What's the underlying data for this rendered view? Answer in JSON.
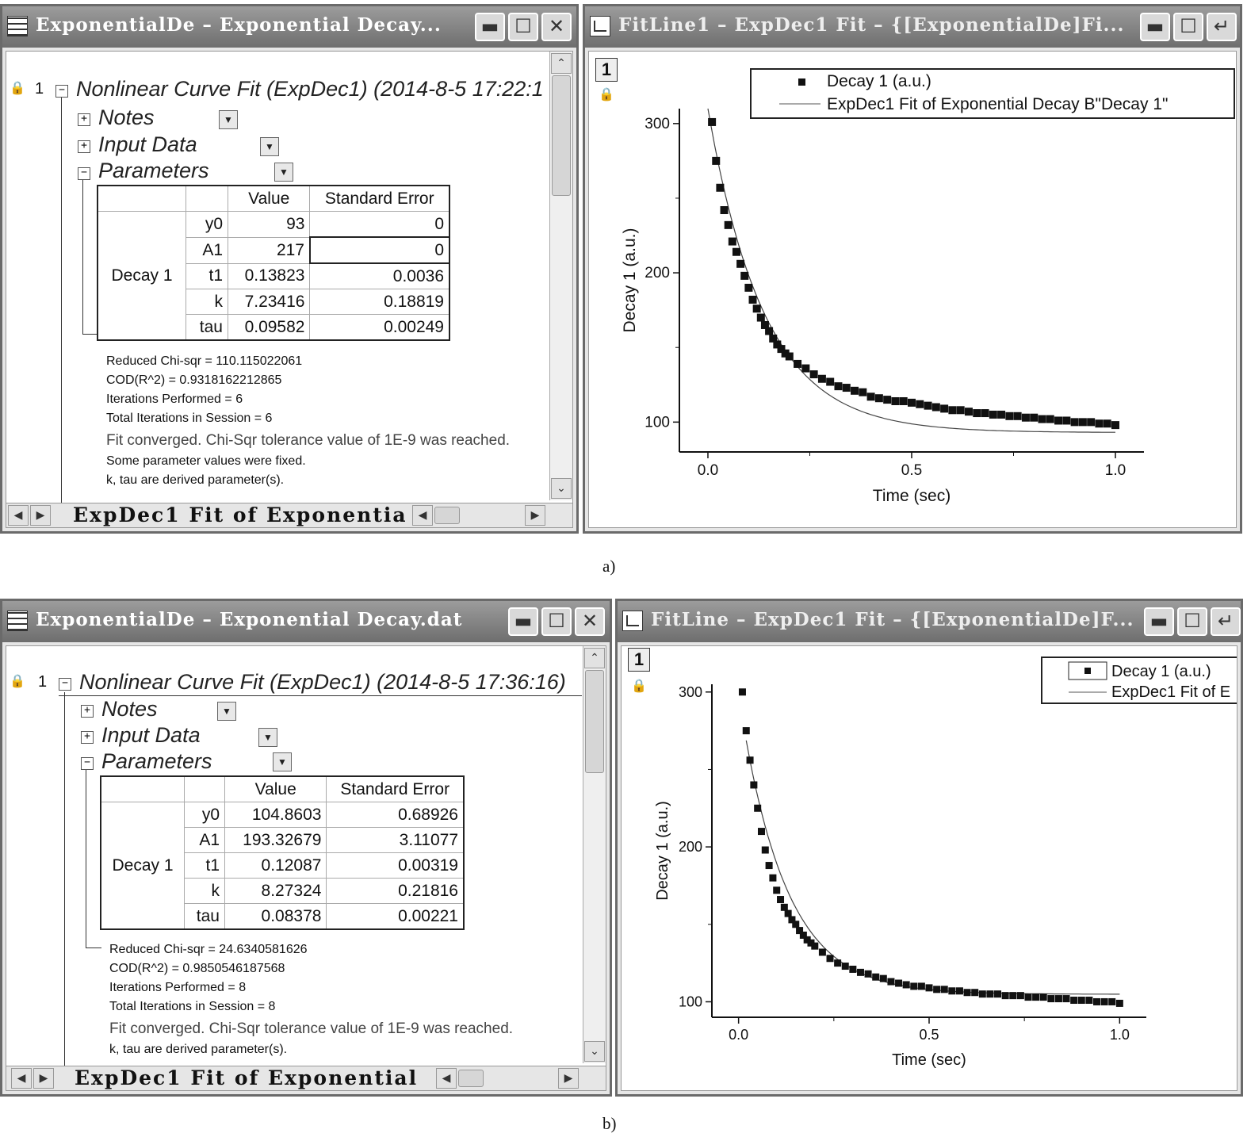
{
  "panels": [
    {
      "caption": "a)",
      "report": {
        "title": "ExponentialDe – Exponential Decay...",
        "row_number": "1",
        "heading": "Nonlinear Curve Fit (ExpDec1) (2014-8-5 17:22:1",
        "sections": [
          "Notes",
          "Input Data",
          "Parameters"
        ],
        "table": {
          "headers": [
            "Value",
            "Standard Error"
          ],
          "group": "Decay 1",
          "rows": [
            {
              "name": "y0",
              "value": "93",
              "error": "0"
            },
            {
              "name": "A1",
              "value": "217",
              "error": "0"
            },
            {
              "name": "t1",
              "value": "0.13823",
              "error": "0.0036"
            },
            {
              "name": "k",
              "value": "7.23416",
              "error": "0.18819"
            },
            {
              "name": "tau",
              "value": "0.09582",
              "error": "0.00249"
            }
          ]
        },
        "stats": [
          "Reduced Chi-sqr = 110.115022061",
          "COD(R^2) = 0.9318162212865",
          "Iterations Performed = 6",
          "Total Iterations in Session = 6",
          "Fit converged. Chi-Sqr tolerance value of 1E-9 was reached.",
          "Some parameter values were fixed.",
          "k, tau are derived parameter(s)."
        ],
        "sheet_tab": "ExpDec1 Fit of Exponentia"
      },
      "graph": {
        "title": "FitLine1 – ExpDec1 Fit – {[ExponentialDe]Fi...",
        "layer": "1",
        "legend": [
          "Decay 1 (a.u.)",
          "ExpDec1 Fit of Exponential Decay B\"Decay 1\""
        ]
      }
    },
    {
      "caption": "b)",
      "report": {
        "title": "ExponentialDe – Exponential Decay.dat",
        "row_number": "1",
        "heading": "Nonlinear Curve Fit (ExpDec1) (2014-8-5 17:36:16)",
        "sections": [
          "Notes",
          "Input Data",
          "Parameters"
        ],
        "table": {
          "headers": [
            "Value",
            "Standard Error"
          ],
          "group": "Decay 1",
          "rows": [
            {
              "name": "y0",
              "value": "104.8603",
              "error": "0.68926"
            },
            {
              "name": "A1",
              "value": "193.32679",
              "error": "3.11077"
            },
            {
              "name": "t1",
              "value": "0.12087",
              "error": "0.00319"
            },
            {
              "name": "k",
              "value": "8.27324",
              "error": "0.21816"
            },
            {
              "name": "tau",
              "value": "0.08378",
              "error": "0.00221"
            }
          ]
        },
        "stats": [
          "Reduced Chi-sqr = 24.6340581626",
          "COD(R^2) = 0.9850546187568",
          "Iterations Performed = 8",
          "Total Iterations in Session = 8",
          "Fit converged. Chi-Sqr tolerance value of 1E-9 was reached.",
          "k, tau are derived parameter(s)."
        ],
        "sheet_tab": "ExpDec1 Fit of Exponential"
      },
      "graph": {
        "title": "FitLine – ExpDec1 Fit – {[ExponentialDe]F...",
        "layer": "1",
        "legend": [
          "Decay 1 (a.u.)",
          "ExpDec1 Fit of E"
        ]
      }
    }
  ],
  "chart_data": [
    {
      "type": "scatter",
      "xlabel": "Time (sec)",
      "ylabel": "Decay 1 (a.u.)",
      "xticks": [
        "0.0",
        "0.5",
        "1.0"
      ],
      "yticks": [
        "100",
        "200",
        "300"
      ],
      "xlim": [
        -0.07,
        1.07
      ],
      "ylim": [
        80,
        310
      ],
      "series": [
        {
          "name": "Decay 1 (a.u.)",
          "style": "markers",
          "x": [
            0.01,
            0.02,
            0.03,
            0.04,
            0.05,
            0.06,
            0.07,
            0.08,
            0.09,
            0.1,
            0.11,
            0.12,
            0.13,
            0.14,
            0.15,
            0.16,
            0.17,
            0.18,
            0.19,
            0.2,
            0.22,
            0.24,
            0.26,
            0.28,
            0.3,
            0.32,
            0.34,
            0.36,
            0.38,
            0.4,
            0.42,
            0.44,
            0.46,
            0.48,
            0.5,
            0.52,
            0.54,
            0.56,
            0.58,
            0.6,
            0.62,
            0.64,
            0.66,
            0.68,
            0.7,
            0.72,
            0.74,
            0.76,
            0.78,
            0.8,
            0.82,
            0.84,
            0.86,
            0.88,
            0.9,
            0.92,
            0.94,
            0.96,
            0.98,
            1.0
          ],
          "y": [
            301,
            275,
            257,
            242,
            232,
            221,
            214,
            206,
            198,
            190,
            182,
            176,
            170,
            165,
            161,
            156,
            152,
            149,
            146,
            144,
            139,
            136,
            132,
            129,
            127,
            124,
            123,
            121,
            120,
            117,
            116,
            115,
            114,
            114,
            113,
            112,
            111,
            110,
            109,
            108,
            108,
            107,
            106,
            106,
            105,
            105,
            104,
            104,
            103,
            103,
            102,
            102,
            101,
            101,
            100,
            100,
            100,
            99,
            99,
            98
          ]
        },
        {
          "name": "ExpDec1 Fit of Exponential Decay B\"Decay 1\"",
          "style": "line",
          "fit": {
            "y0": 93,
            "A1": 217,
            "t1": 0.13823
          },
          "xrange": [
            0.0,
            1.0
          ]
        }
      ]
    },
    {
      "type": "scatter",
      "xlabel": "Time (sec)",
      "ylabel": "Decay 1 (a.u.)",
      "xticks": [
        "0.0",
        "0.5",
        "1.0"
      ],
      "yticks": [
        "100",
        "200",
        "300"
      ],
      "xlim": [
        -0.07,
        1.07
      ],
      "ylim": [
        90,
        305
      ],
      "series": [
        {
          "name": "Decay 1 (a.u.)",
          "style": "markers",
          "x": [
            0.01,
            0.02,
            0.03,
            0.04,
            0.05,
            0.06,
            0.07,
            0.08,
            0.09,
            0.1,
            0.11,
            0.12,
            0.13,
            0.14,
            0.15,
            0.16,
            0.17,
            0.18,
            0.19,
            0.2,
            0.22,
            0.24,
            0.26,
            0.28,
            0.3,
            0.32,
            0.34,
            0.36,
            0.38,
            0.4,
            0.42,
            0.44,
            0.46,
            0.48,
            0.5,
            0.52,
            0.54,
            0.56,
            0.58,
            0.6,
            0.62,
            0.64,
            0.66,
            0.68,
            0.7,
            0.72,
            0.74,
            0.76,
            0.78,
            0.8,
            0.82,
            0.84,
            0.86,
            0.88,
            0.9,
            0.92,
            0.94,
            0.96,
            0.98,
            1.0
          ],
          "y": [
            300,
            275,
            256,
            240,
            225,
            210,
            198,
            188,
            180,
            172,
            166,
            161,
            157,
            153,
            150,
            146,
            143,
            140,
            138,
            136,
            132,
            128,
            125,
            123,
            121,
            119,
            118,
            116,
            115,
            113,
            112,
            111,
            110,
            110,
            109,
            108,
            108,
            107,
            107,
            106,
            106,
            105,
            105,
            105,
            104,
            104,
            104,
            103,
            103,
            103,
            102,
            102,
            102,
            101,
            101,
            101,
            100,
            100,
            100,
            99
          ]
        },
        {
          "name": "ExpDec1 Fit of E",
          "style": "line",
          "fit": {
            "y0": 104.8603,
            "A1": 193.32679,
            "t1": 0.12087
          },
          "xrange": [
            0.02,
            1.0
          ]
        }
      ]
    }
  ]
}
